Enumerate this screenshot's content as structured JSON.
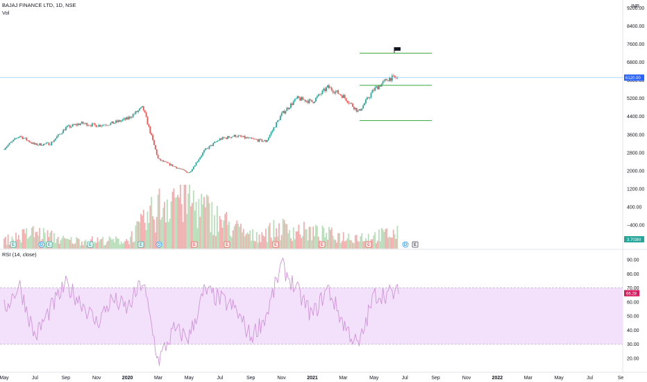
{
  "header": {
    "symbol_title": "BAJAJ FINANCE LTD, 1D, NSE",
    "volume_label": "Vol",
    "rsi_label": "RSI (14, close)"
  },
  "price_axis": {
    "ticks": [
      "9200.00",
      "8400.00",
      "7600.00",
      "6800.00",
      "6000.00",
      "5200.00",
      "4400.00",
      "3600.00",
      "2800.00",
      "2000.00",
      "1200.00",
      "400.00",
      "−400.00"
    ],
    "current_price_badge": "6120.00",
    "volume_badge": "3.703M",
    "currency": "INR"
  },
  "rsi_axis": {
    "ticks": [
      "90.00",
      "80.00",
      "70.00",
      "60.00",
      "50.00",
      "40.00",
      "30.00",
      "20.00"
    ],
    "current_badge": "66.28"
  },
  "time_axis": {
    "ticks": [
      "May",
      "Jul",
      "Sep",
      "Nov",
      "2020",
      "Mar",
      "May",
      "Jul",
      "Sep",
      "Nov",
      "2021",
      "Mar",
      "May",
      "Jul",
      "Sep",
      "Nov",
      "2022",
      "Mar",
      "May",
      "Jul",
      "Se"
    ]
  },
  "colors": {
    "up": "#26a69a",
    "down": "#ef5350",
    "rsi_line": "#ce93d8",
    "rsi_band": "#f3e0fb",
    "price_line": "#90caf9",
    "level_line": "#4caf50",
    "price_badge": "#2962ff",
    "volume_badge": "#26a69a",
    "rsi_badge": "#d81b60"
  },
  "events": [
    {
      "type": "earnings",
      "symbol": "E"
    },
    {
      "type": "dividend",
      "symbol": "D"
    },
    {
      "type": "earnings",
      "symbol": "E"
    },
    {
      "type": "earnings",
      "symbol": "E"
    },
    {
      "type": "earnings",
      "symbol": "E"
    },
    {
      "type": "dividend",
      "symbol": "D"
    },
    {
      "type": "earnings",
      "symbol": "E"
    },
    {
      "type": "earnings",
      "symbol": "E"
    },
    {
      "type": "earnings",
      "symbol": "E"
    },
    {
      "type": "earnings",
      "symbol": "E"
    },
    {
      "type": "earnings",
      "symbol": "E"
    },
    {
      "type": "dividend",
      "symbol": "D"
    },
    {
      "type": "earnings",
      "symbol": "E"
    }
  ],
  "chart_data": {
    "type": "line",
    "title": "BAJAJ FINANCE LTD, 1D, NSE",
    "x_range": [
      "2019-05",
      "2022-09"
    ],
    "price": {
      "ylim": [
        -800,
        9400
      ],
      "current": 6120,
      "horizontal_levels": [
        7200,
        5780,
        4220
      ],
      "series": [
        {
          "date": "2019-05",
          "value": 3000
        },
        {
          "date": "2019-06",
          "value": 3550
        },
        {
          "date": "2019-07",
          "value": 3150
        },
        {
          "date": "2019-08",
          "value": 3200
        },
        {
          "date": "2019-09",
          "value": 3900
        },
        {
          "date": "2019-10",
          "value": 4100
        },
        {
          "date": "2019-11",
          "value": 4000
        },
        {
          "date": "2019-12",
          "value": 4100
        },
        {
          "date": "2020-01",
          "value": 4300
        },
        {
          "date": "2020-02",
          "value": 4800
        },
        {
          "date": "2020-03",
          "value": 2500
        },
        {
          "date": "2020-04",
          "value": 2200
        },
        {
          "date": "2020-05",
          "value": 1900
        },
        {
          "date": "2020-06",
          "value": 2900
        },
        {
          "date": "2020-07",
          "value": 3400
        },
        {
          "date": "2020-08",
          "value": 3550
        },
        {
          "date": "2020-09",
          "value": 3400
        },
        {
          "date": "2020-10",
          "value": 3300
        },
        {
          "date": "2020-11",
          "value": 4500
        },
        {
          "date": "2020-12",
          "value": 5200
        },
        {
          "date": "2021-01",
          "value": 5050
        },
        {
          "date": "2021-02",
          "value": 5700
        },
        {
          "date": "2021-03",
          "value": 5300
        },
        {
          "date": "2021-04",
          "value": 4600
        },
        {
          "date": "2021-05",
          "value": 5600
        },
        {
          "date": "2021-06",
          "value": 6100
        }
      ]
    },
    "volume": {
      "unit": "M",
      "current": 3.703,
      "series": [
        {
          "date": "2019-05",
          "value": 2
        },
        {
          "date": "2019-07",
          "value": 4
        },
        {
          "date": "2019-09",
          "value": 2
        },
        {
          "date": "2019-11",
          "value": 2
        },
        {
          "date": "2020-01",
          "value": 2
        },
        {
          "date": "2020-03",
          "value": 10
        },
        {
          "date": "2020-04",
          "value": 14
        },
        {
          "date": "2020-05",
          "value": 12
        },
        {
          "date": "2020-07",
          "value": 7
        },
        {
          "date": "2020-09",
          "value": 3
        },
        {
          "date": "2020-11",
          "value": 5
        },
        {
          "date": "2021-01",
          "value": 4
        },
        {
          "date": "2021-03",
          "value": 3
        },
        {
          "date": "2021-05",
          "value": 3
        },
        {
          "date": "2021-06",
          "value": 3.7
        }
      ]
    },
    "rsi": {
      "ylim": [
        12,
        96
      ],
      "bands": [
        30,
        70
      ],
      "current": 66.28,
      "series": [
        {
          "date": "2019-05",
          "value": 55
        },
        {
          "date": "2019-06",
          "value": 72
        },
        {
          "date": "2019-07",
          "value": 35
        },
        {
          "date": "2019-08",
          "value": 55
        },
        {
          "date": "2019-09",
          "value": 72
        },
        {
          "date": "2019-10",
          "value": 60
        },
        {
          "date": "2019-11",
          "value": 45
        },
        {
          "date": "2019-12",
          "value": 62
        },
        {
          "date": "2020-01",
          "value": 55
        },
        {
          "date": "2020-02",
          "value": 75
        },
        {
          "date": "2020-03",
          "value": 18
        },
        {
          "date": "2020-04",
          "value": 40
        },
        {
          "date": "2020-05",
          "value": 35
        },
        {
          "date": "2020-06",
          "value": 68
        },
        {
          "date": "2020-07",
          "value": 62
        },
        {
          "date": "2020-08",
          "value": 55
        },
        {
          "date": "2020-09",
          "value": 35
        },
        {
          "date": "2020-10",
          "value": 50
        },
        {
          "date": "2020-11",
          "value": 86
        },
        {
          "date": "2020-12",
          "value": 68
        },
        {
          "date": "2021-01",
          "value": 50
        },
        {
          "date": "2021-02",
          "value": 70
        },
        {
          "date": "2021-03",
          "value": 45
        },
        {
          "date": "2021-04",
          "value": 28
        },
        {
          "date": "2021-05",
          "value": 65
        },
        {
          "date": "2021-06",
          "value": 66
        }
      ]
    }
  }
}
